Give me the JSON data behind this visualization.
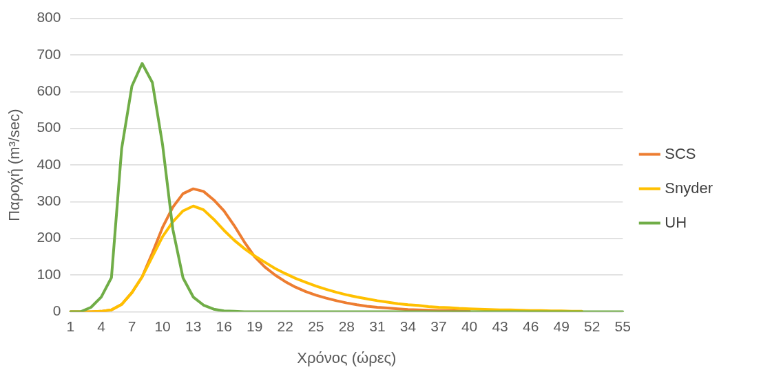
{
  "chart_data": {
    "type": "line",
    "xlabel": "Χρόνος (ώρες)",
    "ylabel": "Παροχή (m³/sec)",
    "categories": [
      "1",
      null,
      null,
      "4",
      null,
      null,
      "7",
      null,
      null,
      "10",
      null,
      null,
      "13",
      null,
      null,
      "16",
      null,
      null,
      "19",
      null,
      null,
      "22",
      null,
      null,
      "25",
      null,
      null,
      "28",
      null,
      null,
      "31",
      null,
      null,
      "34",
      null,
      null,
      "37",
      null,
      null,
      "40",
      null,
      null,
      "43",
      null,
      null,
      "46",
      null,
      null,
      "49",
      null,
      null,
      "52",
      null,
      null,
      "55"
    ],
    "series": [
      {
        "name": "SCS",
        "color": "#ed7d31",
        "values": [
          0,
          0,
          0,
          1,
          5,
          20,
          52,
          95,
          160,
          230,
          285,
          322,
          335,
          328,
          305,
          275,
          235,
          190,
          150,
          122,
          100,
          82,
          67,
          55,
          45,
          37,
          30,
          24,
          19,
          15,
          12,
          10,
          8,
          6,
          5,
          4,
          3,
          3,
          2,
          2,
          null,
          null,
          null,
          null,
          null,
          null,
          null,
          null,
          null,
          null,
          null,
          null,
          null,
          null,
          null
        ]
      },
      {
        "name": "Snyder",
        "color": "#ffc000",
        "values": [
          0,
          0,
          0,
          1,
          5,
          20,
          52,
          95,
          150,
          205,
          245,
          275,
          288,
          278,
          252,
          222,
          195,
          172,
          152,
          135,
          118,
          104,
          91,
          80,
          70,
          61,
          53,
          46,
          40,
          35,
          30,
          26,
          22,
          19,
          17,
          14,
          12,
          11,
          9,
          8,
          7,
          6,
          5,
          5,
          4,
          3,
          3,
          2,
          2,
          1,
          1,
          null,
          null,
          null,
          null
        ]
      },
      {
        "name": "UH",
        "color": "#70ad47",
        "values": [
          0,
          0,
          12,
          40,
          93,
          445,
          615,
          677,
          625,
          455,
          225,
          92,
          40,
          18,
          7,
          2,
          1,
          0,
          0,
          0,
          0,
          0,
          0,
          0,
          0,
          0,
          0,
          0,
          0,
          0,
          0,
          0,
          0,
          0,
          0,
          0,
          0,
          0,
          0,
          0,
          0,
          0,
          0,
          0,
          0,
          0,
          0,
          0,
          0,
          0,
          0,
          0,
          0,
          0,
          0
        ]
      }
    ],
    "ylim": [
      0,
      800
    ],
    "yticks": [
      0,
      100,
      200,
      300,
      400,
      500,
      600,
      700,
      800
    ],
    "grid": "y",
    "legend": "right",
    "marker": "none",
    "line_style": "solid"
  }
}
